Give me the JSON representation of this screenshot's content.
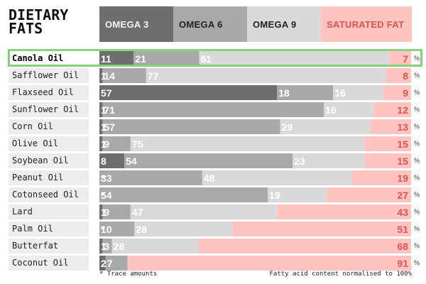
{
  "title": "DIETARY\nFATS",
  "headers": [
    {
      "label": "OMEGA 3",
      "bg": "#6e6e6e",
      "fg": "#f4f4f4"
    },
    {
      "label": "OMEGA 6",
      "bg": "#a9a9a9",
      "fg": "#222222"
    },
    {
      "label": "OMEGA 9",
      "bg": "#d9d9d9",
      "fg": "#222222"
    },
    {
      "label": "SATURATED FAT",
      "bg": "#ffc4c0",
      "fg": "#e0534f"
    }
  ],
  "percent_sign": "%",
  "footnote_left": "* Trace amounts",
  "footnote_right": "Fatty acid content normalised to 100%",
  "highlighted_row": "Canola Oil",
  "chart_data": {
    "type": "bar",
    "stacked": true,
    "orientation": "horizontal",
    "categories": [
      "Canola Oil",
      "Safflower Oil",
      "Flaxseed Oil",
      "Sunflower Oil",
      "Corn Oil",
      "Olive Oil",
      "Soybean Oil",
      "Peanut Oil",
      "Cotonseed Oil",
      "Lard",
      "Palm Oil",
      "Butterfat",
      "Coconut Oil"
    ],
    "series": [
      {
        "name": "OMEGA 3",
        "color": "#6e6e6e",
        "label_color": "#ffffff",
        "values": [
          11,
          1,
          57,
          1,
          1,
          1,
          8,
          0,
          0,
          1,
          0,
          1,
          2
        ],
        "labels": [
          "11",
          "1",
          "57",
          "1",
          "1",
          "1",
          "8",
          "*",
          "*",
          "1",
          "*",
          "1",
          "2"
        ]
      },
      {
        "name": "OMEGA 6",
        "color": "#a9a9a9",
        "label_color": "#ffffff",
        "values": [
          21,
          14,
          18,
          71,
          57,
          9,
          54,
          33,
          54,
          9,
          10,
          3,
          7
        ],
        "labels": [
          "21",
          "14",
          "18",
          "71",
          "57",
          "9",
          "54",
          "33",
          "54",
          "9",
          "10",
          "3",
          "7"
        ]
      },
      {
        "name": "OMEGA 9",
        "color": "#d9d9d9",
        "label_color": "#ffffff",
        "values": [
          61,
          77,
          16,
          16,
          29,
          75,
          23,
          48,
          19,
          47,
          28,
          28,
          0
        ],
        "labels": [
          "61",
          "77",
          "16",
          "16",
          "29",
          "75",
          "23",
          "48",
          "19",
          "47",
          "28",
          "28",
          ""
        ]
      },
      {
        "name": "SATURATED FAT",
        "color": "#ffc4c0",
        "label_color": "#e0534f",
        "values": [
          7,
          8,
          9,
          12,
          13,
          15,
          15,
          19,
          27,
          43,
          51,
          68,
          91
        ],
        "labels": [
          "7",
          "8",
          "9",
          "12",
          "13",
          "15",
          "15",
          "19",
          "27",
          "43",
          "51",
          "68",
          "91"
        ]
      }
    ],
    "xlim": [
      0,
      100
    ],
    "unit": "%"
  }
}
